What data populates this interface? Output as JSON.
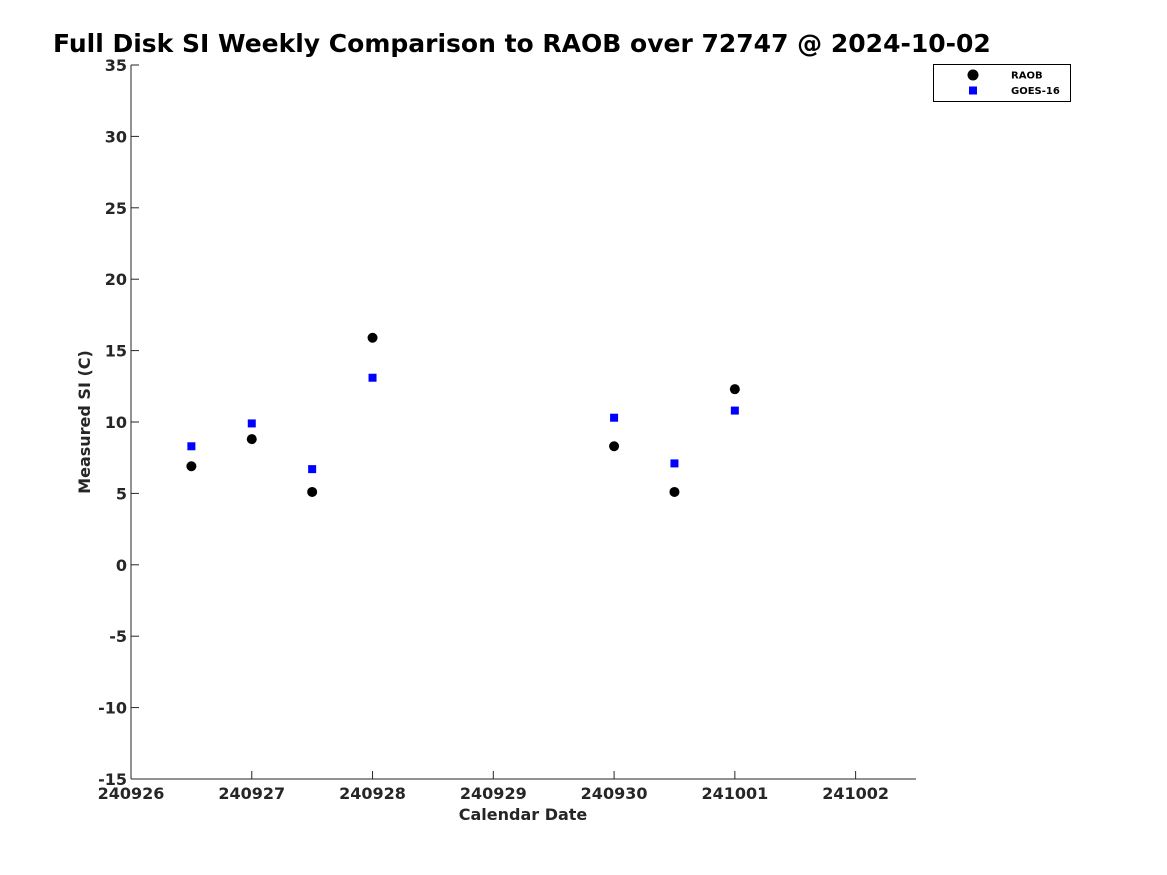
{
  "chart_data": {
    "type": "scatter",
    "title": "Full Disk SI Weekly Comparison to RAOB over 72747 @ 2024-10-02",
    "xlabel": "Calendar Date",
    "ylabel": "Measured SI (C)",
    "x_ticks": [
      "240926",
      "240927",
      "240928",
      "240929",
      "240930",
      "241001",
      "241002"
    ],
    "x_tick_values": [
      0,
      1,
      2,
      3,
      4,
      5,
      6
    ],
    "xlim": [
      0,
      6.5
    ],
    "ylim": [
      -15,
      35
    ],
    "y_ticks": [
      35,
      30,
      25,
      20,
      15,
      10,
      5,
      0,
      -5,
      -10,
      -15
    ],
    "grid": false,
    "legend_position": "top-right",
    "series": [
      {
        "name": "RAOB",
        "marker": "circle",
        "color": "#000000",
        "x": [
          0.5,
          1.0,
          1.5,
          2.0,
          4.0,
          4.5,
          5.0
        ],
        "y": [
          6.9,
          8.8,
          5.1,
          15.9,
          8.3,
          5.1,
          12.3
        ]
      },
      {
        "name": "GOES-16",
        "marker": "square",
        "color": "#0000ff",
        "x": [
          0.5,
          1.0,
          1.5,
          2.0,
          4.0,
          4.5,
          5.0
        ],
        "y": [
          8.3,
          9.9,
          6.7,
          13.1,
          10.3,
          7.1,
          10.8
        ]
      }
    ]
  }
}
